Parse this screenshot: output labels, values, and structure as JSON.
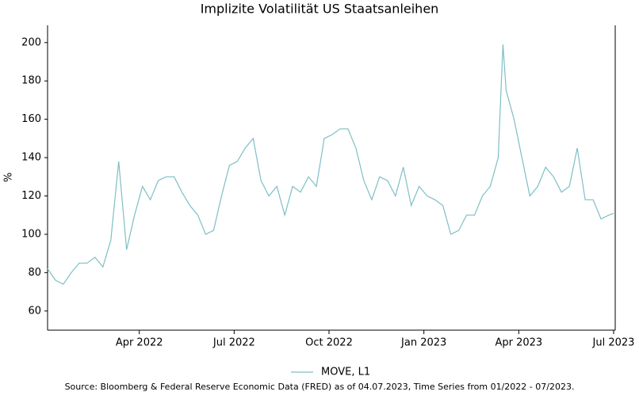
{
  "chart_data": {
    "type": "line",
    "title": "Implizite Volatilität US Staatsanleihen",
    "ylabel": "%",
    "source": "Source: Bloomberg & Federal Reserve Economic Data (FRED) as of 04.07.2023, Time Series from 01/2022 - 07/2023.",
    "x": [
      0.1,
      0.35,
      0.6,
      0.85,
      1.1,
      1.35,
      1.6,
      1.85,
      2.1,
      2.35,
      2.6,
      2.85,
      3.1,
      3.35,
      3.6,
      3.85,
      4.1,
      4.35,
      4.6,
      4.85,
      5.1,
      5.35,
      5.6,
      5.85,
      6.1,
      6.35,
      6.6,
      6.85,
      7.1,
      7.35,
      7.6,
      7.85,
      8.1,
      8.35,
      8.6,
      8.85,
      9.1,
      9.35,
      9.6,
      9.85,
      10.1,
      10.35,
      10.6,
      10.85,
      11.1,
      11.35,
      11.6,
      11.85,
      12.1,
      12.35,
      12.6,
      12.85,
      13.1,
      13.35,
      13.6,
      13.85,
      14.1,
      14.35,
      14.5,
      14.6,
      14.85,
      15.1,
      15.35,
      15.6,
      15.85,
      16.1,
      16.35,
      16.6,
      16.85,
      17.1,
      17.35,
      17.6,
      17.85,
      18.0
    ],
    "series": [
      {
        "name": "MOVE, L1",
        "color": "#7dbfc5",
        "values": [
          82,
          76,
          74,
          80,
          85,
          85,
          88,
          83,
          97,
          138,
          92,
          110,
          125,
          118,
          128,
          130,
          130,
          122,
          115,
          110,
          100,
          102,
          120,
          136,
          138,
          145,
          150,
          128,
          120,
          125,
          110,
          125,
          122,
          130,
          125,
          150,
          152,
          155,
          155,
          145,
          128,
          118,
          130,
          128,
          120,
          135,
          115,
          125,
          120,
          118,
          115,
          100,
          102,
          110,
          110,
          120,
          125,
          140,
          199,
          175,
          160,
          140,
          120,
          125,
          135,
          130,
          122,
          125,
          145,
          118,
          118,
          108,
          110,
          111
        ]
      }
    ],
    "xlim": [
      0.1,
      18.05
    ],
    "ylim": [
      50,
      209
    ],
    "xticks": [
      {
        "value": 3,
        "label": "Apr 2022"
      },
      {
        "value": 6,
        "label": "Jul 2022"
      },
      {
        "value": 9,
        "label": "Oct 2022"
      },
      {
        "value": 12,
        "label": "Jan 2023"
      },
      {
        "value": 15,
        "label": "Apr 2023"
      },
      {
        "value": 18,
        "label": "Jul 2023"
      }
    ],
    "yticks": [
      60,
      80,
      100,
      120,
      140,
      160,
      180,
      200
    ],
    "legend": "bottom"
  }
}
